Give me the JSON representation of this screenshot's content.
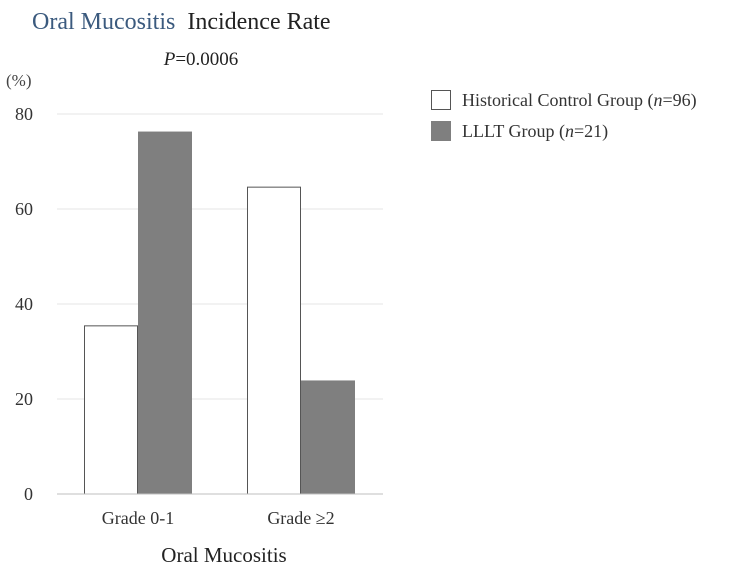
{
  "chart_data": {
    "type": "bar",
    "title_part1": "Oral Mucositis",
    "title_part2": "Incidence Rate",
    "title_color": "#3b5a7e",
    "subtitle_italic": "P",
    "subtitle_rest": "=0.0006",
    "ylabel": "(%)",
    "xlabel": "Oral Mucositis",
    "ylim": [
      0,
      80
    ],
    "yticks": [
      0,
      20,
      40,
      60,
      80
    ],
    "grid": true,
    "categories": [
      "Grade 0-1",
      "Grade ≥2"
    ],
    "series": [
      {
        "name": "Historical Control Group",
        "legend_prefix": "Historical Control Group (",
        "legend_italic": "n",
        "legend_suffix": "=96)",
        "fill": "#ffffff",
        "stroke": "#555555",
        "values": [
          35.4,
          64.6
        ]
      },
      {
        "name": "LLLT Group",
        "legend_prefix": "LLLT Group (",
        "legend_italic": "n",
        "legend_suffix": "=21)",
        "fill": "#7f7f7f",
        "stroke": "#7f7f7f",
        "values": [
          76.2,
          23.8
        ]
      }
    ],
    "legend_position": "top-right"
  }
}
